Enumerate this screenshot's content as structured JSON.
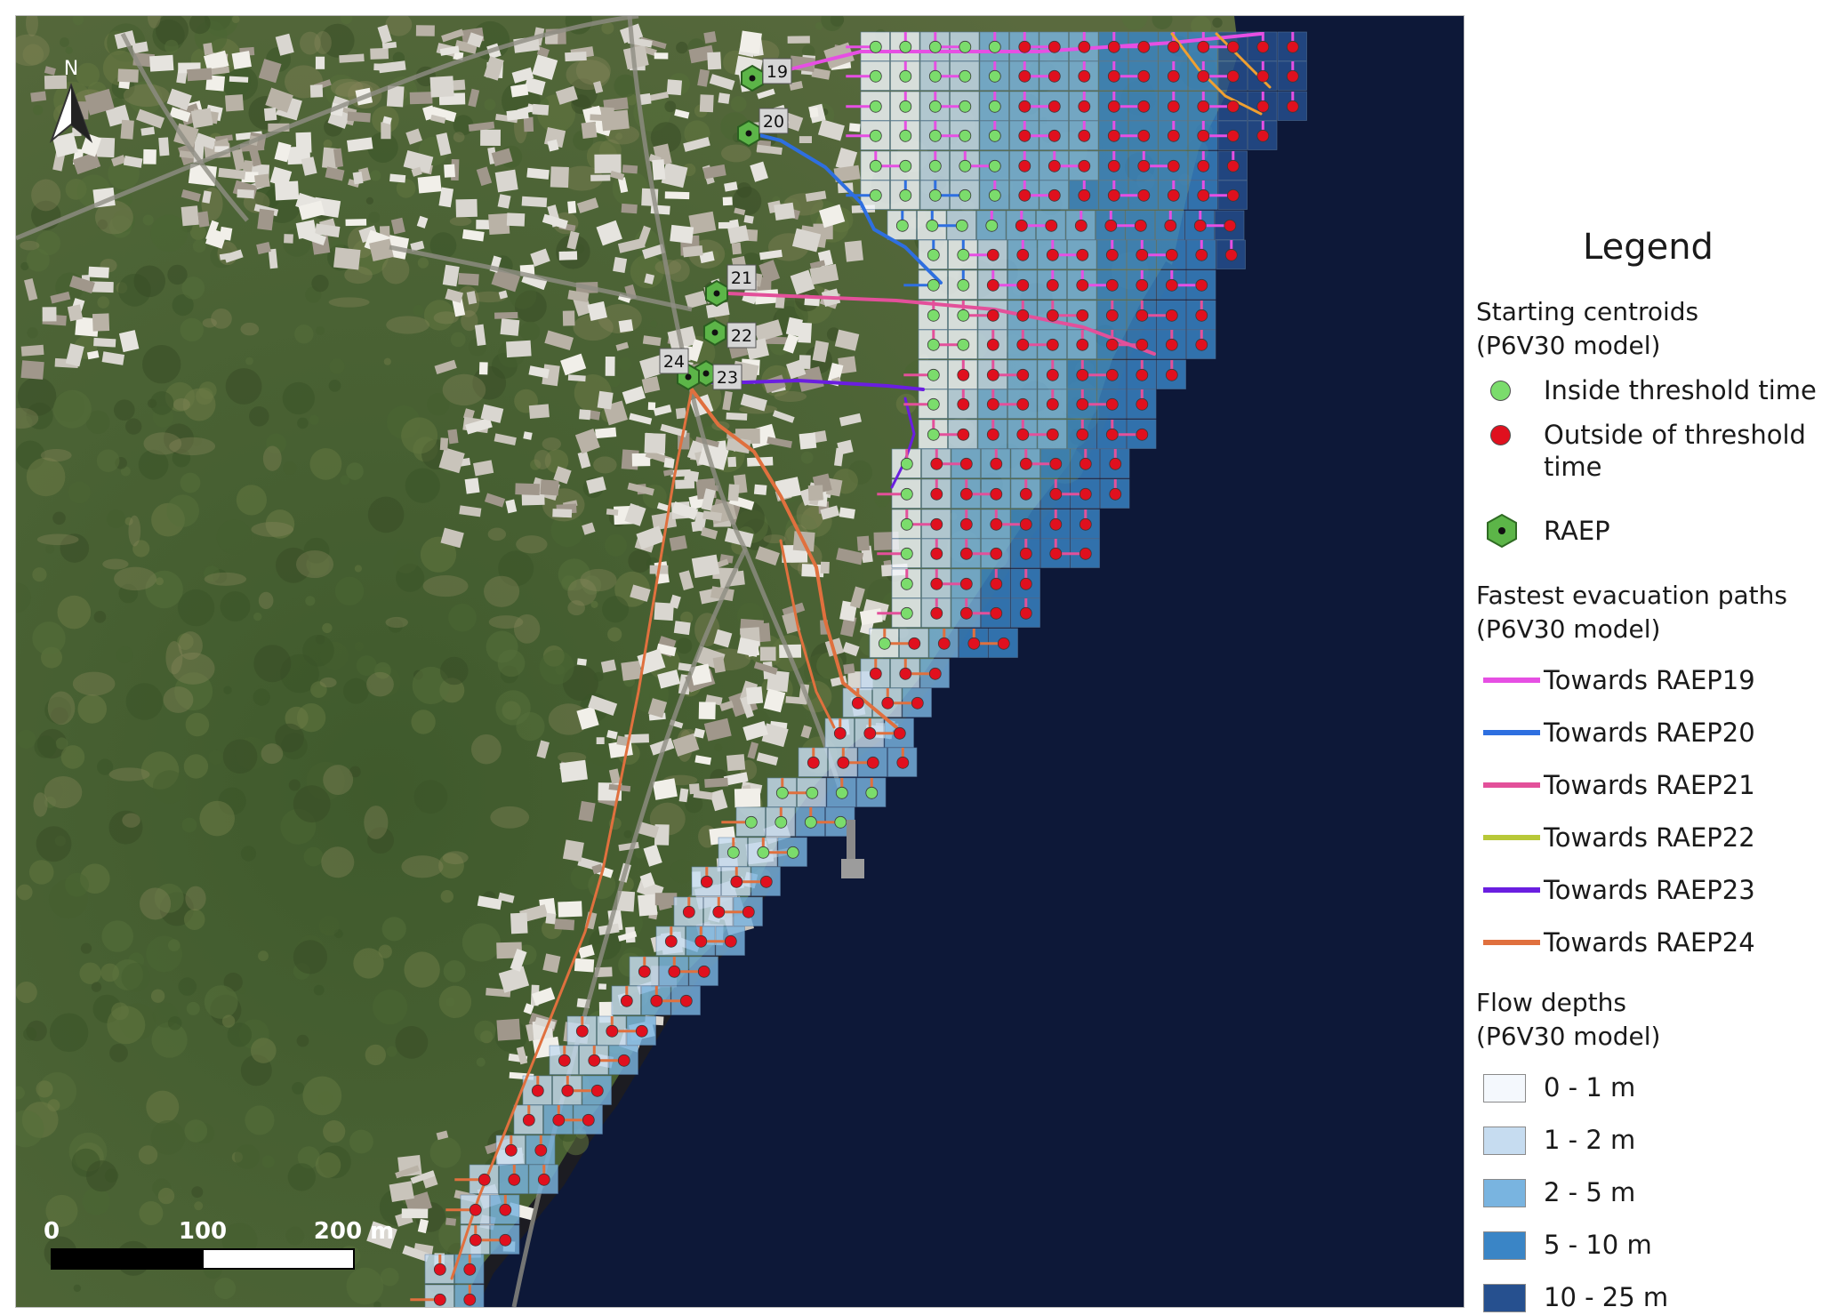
{
  "legend": {
    "title": "Legend",
    "starting_centroids": {
      "heading": "Starting centroids\n(P6V30 model)",
      "inside": {
        "label": "Inside threshold time",
        "color": "#7bdc6c"
      },
      "outside": {
        "label": "Outside of threshold\ntime",
        "color": "#e0101e"
      },
      "raep": {
        "label": "RAEP",
        "color": "#5cb548"
      }
    },
    "paths": {
      "heading": "Fastest evacuation paths\n(P6V30 model)",
      "items": [
        {
          "label": "Towards RAEP19",
          "color": "#e64fe3"
        },
        {
          "label": "Towards RAEP20",
          "color": "#2e6fe0"
        },
        {
          "label": "Towards RAEP21",
          "color": "#e3509a"
        },
        {
          "label": "Towards RAEP22",
          "color": "#b8c838"
        },
        {
          "label": "Towards RAEP23",
          "color": "#6a1ee0"
        },
        {
          "label": "Towards RAEP24",
          "color": "#e0703e"
        }
      ]
    },
    "flow_depths": {
      "heading": "Flow depths\n(P6V30 model)",
      "items": [
        {
          "label": "0 - 1 m",
          "color": "#f4f8fd"
        },
        {
          "label": "1 - 2 m",
          "color": "#c6dcf0"
        },
        {
          "label": "2 - 5 m",
          "color": "#79b4e0"
        },
        {
          "label": "5 - 10 m",
          "color": "#3a85c6"
        },
        {
          "label": "10 - 25 m",
          "color": "#26508f"
        }
      ]
    }
  },
  "map": {
    "north_label": "N",
    "raep_labels": [
      "19",
      "20",
      "21",
      "22",
      "23",
      "24"
    ],
    "scalebar": {
      "ticks": [
        "0",
        "100",
        "200 m"
      ]
    },
    "colors": {
      "sea": "#0d1838",
      "land": "#4a5d33",
      "coast": "#1c1c22"
    }
  }
}
